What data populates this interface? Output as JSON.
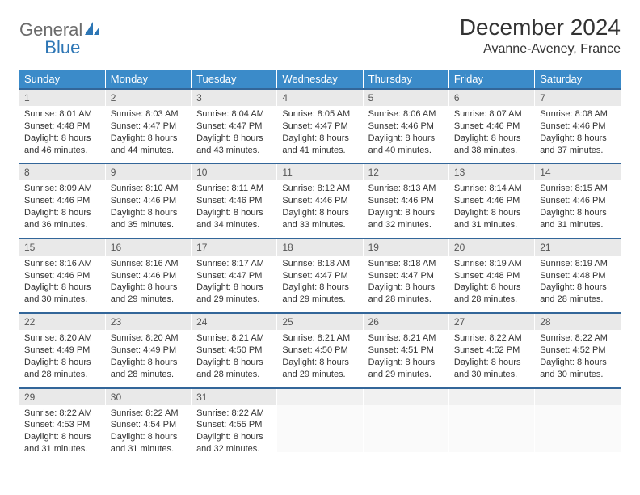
{
  "brand": {
    "part1": "General",
    "part2": "Blue"
  },
  "title": "December 2024",
  "location": "Avanne-Aveney, France",
  "colors": {
    "header_bg": "#3b8bc9",
    "row_divider": "#336699",
    "daynum_bg": "#e9e9e9",
    "brand_blue": "#2d76b5",
    "brand_gray": "#6b6b6b"
  },
  "columns": [
    "Sunday",
    "Monday",
    "Tuesday",
    "Wednesday",
    "Thursday",
    "Friday",
    "Saturday"
  ],
  "weeks": [
    [
      {
        "n": "1",
        "sr": "8:01 AM",
        "ss": "4:48 PM",
        "dl": "8 hours and 46 minutes."
      },
      {
        "n": "2",
        "sr": "8:03 AM",
        "ss": "4:47 PM",
        "dl": "8 hours and 44 minutes."
      },
      {
        "n": "3",
        "sr": "8:04 AM",
        "ss": "4:47 PM",
        "dl": "8 hours and 43 minutes."
      },
      {
        "n": "4",
        "sr": "8:05 AM",
        "ss": "4:47 PM",
        "dl": "8 hours and 41 minutes."
      },
      {
        "n": "5",
        "sr": "8:06 AM",
        "ss": "4:46 PM",
        "dl": "8 hours and 40 minutes."
      },
      {
        "n": "6",
        "sr": "8:07 AM",
        "ss": "4:46 PM",
        "dl": "8 hours and 38 minutes."
      },
      {
        "n": "7",
        "sr": "8:08 AM",
        "ss": "4:46 PM",
        "dl": "8 hours and 37 minutes."
      }
    ],
    [
      {
        "n": "8",
        "sr": "8:09 AM",
        "ss": "4:46 PM",
        "dl": "8 hours and 36 minutes."
      },
      {
        "n": "9",
        "sr": "8:10 AM",
        "ss": "4:46 PM",
        "dl": "8 hours and 35 minutes."
      },
      {
        "n": "10",
        "sr": "8:11 AM",
        "ss": "4:46 PM",
        "dl": "8 hours and 34 minutes."
      },
      {
        "n": "11",
        "sr": "8:12 AM",
        "ss": "4:46 PM",
        "dl": "8 hours and 33 minutes."
      },
      {
        "n": "12",
        "sr": "8:13 AM",
        "ss": "4:46 PM",
        "dl": "8 hours and 32 minutes."
      },
      {
        "n": "13",
        "sr": "8:14 AM",
        "ss": "4:46 PM",
        "dl": "8 hours and 31 minutes."
      },
      {
        "n": "14",
        "sr": "8:15 AM",
        "ss": "4:46 PM",
        "dl": "8 hours and 31 minutes."
      }
    ],
    [
      {
        "n": "15",
        "sr": "8:16 AM",
        "ss": "4:46 PM",
        "dl": "8 hours and 30 minutes."
      },
      {
        "n": "16",
        "sr": "8:16 AM",
        "ss": "4:46 PM",
        "dl": "8 hours and 29 minutes."
      },
      {
        "n": "17",
        "sr": "8:17 AM",
        "ss": "4:47 PM",
        "dl": "8 hours and 29 minutes."
      },
      {
        "n": "18",
        "sr": "8:18 AM",
        "ss": "4:47 PM",
        "dl": "8 hours and 29 minutes."
      },
      {
        "n": "19",
        "sr": "8:18 AM",
        "ss": "4:47 PM",
        "dl": "8 hours and 28 minutes."
      },
      {
        "n": "20",
        "sr": "8:19 AM",
        "ss": "4:48 PM",
        "dl": "8 hours and 28 minutes."
      },
      {
        "n": "21",
        "sr": "8:19 AM",
        "ss": "4:48 PM",
        "dl": "8 hours and 28 minutes."
      }
    ],
    [
      {
        "n": "22",
        "sr": "8:20 AM",
        "ss": "4:49 PM",
        "dl": "8 hours and 28 minutes."
      },
      {
        "n": "23",
        "sr": "8:20 AM",
        "ss": "4:49 PM",
        "dl": "8 hours and 28 minutes."
      },
      {
        "n": "24",
        "sr": "8:21 AM",
        "ss": "4:50 PM",
        "dl": "8 hours and 28 minutes."
      },
      {
        "n": "25",
        "sr": "8:21 AM",
        "ss": "4:50 PM",
        "dl": "8 hours and 29 minutes."
      },
      {
        "n": "26",
        "sr": "8:21 AM",
        "ss": "4:51 PM",
        "dl": "8 hours and 29 minutes."
      },
      {
        "n": "27",
        "sr": "8:22 AM",
        "ss": "4:52 PM",
        "dl": "8 hours and 30 minutes."
      },
      {
        "n": "28",
        "sr": "8:22 AM",
        "ss": "4:52 PM",
        "dl": "8 hours and 30 minutes."
      }
    ],
    [
      {
        "n": "29",
        "sr": "8:22 AM",
        "ss": "4:53 PM",
        "dl": "8 hours and 31 minutes."
      },
      {
        "n": "30",
        "sr": "8:22 AM",
        "ss": "4:54 PM",
        "dl": "8 hours and 31 minutes."
      },
      {
        "n": "31",
        "sr": "8:22 AM",
        "ss": "4:55 PM",
        "dl": "8 hours and 32 minutes."
      },
      {
        "empty": true
      },
      {
        "empty": true
      },
      {
        "empty": true
      },
      {
        "empty": true
      }
    ]
  ],
  "labels": {
    "sunrise": "Sunrise: ",
    "sunset": "Sunset: ",
    "daylight": "Daylight: "
  }
}
